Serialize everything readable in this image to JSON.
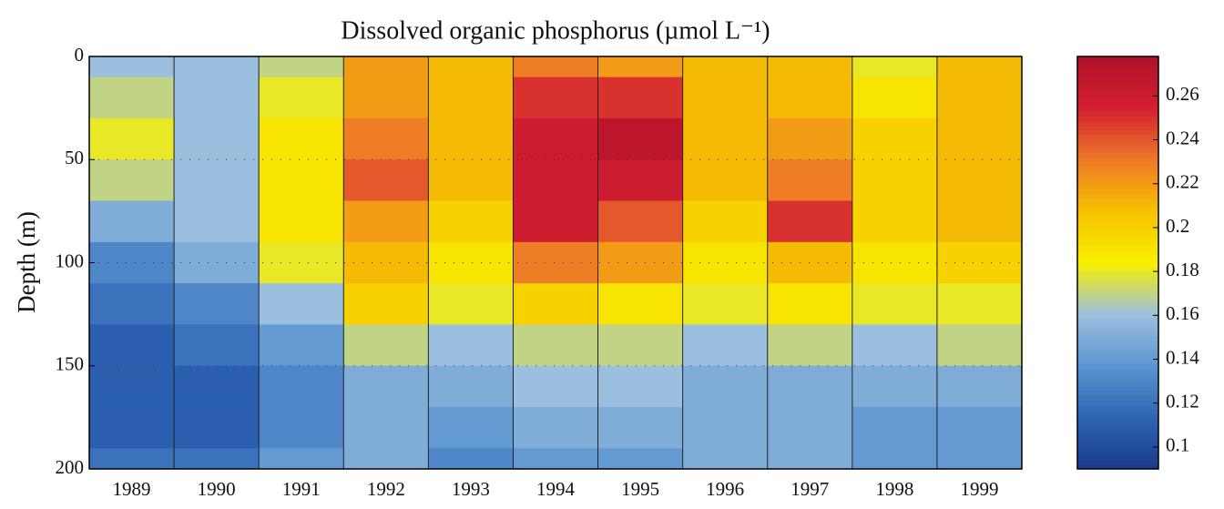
{
  "chart_data": {
    "type": "heatmap",
    "title": "Dissolved organic phosphorus (µmol L⁻¹)",
    "ylabel": "Depth (m)",
    "categories": [
      "1989",
      "1990",
      "1991",
      "1992",
      "1993",
      "1994",
      "1995",
      "1996",
      "1997",
      "1998",
      "1999"
    ],
    "y": [
      0,
      20,
      40,
      60,
      80,
      100,
      120,
      140,
      160,
      180,
      200
    ],
    "ylim": [
      0,
      200
    ],
    "yticks": [
      0,
      50,
      100,
      150,
      200
    ],
    "y_inverted": true,
    "values": [
      [
        0.16,
        0.17,
        0.18,
        0.17,
        0.15,
        0.13,
        0.12,
        0.11,
        0.11,
        0.11,
        0.12
      ],
      [
        0.16,
        0.16,
        0.16,
        0.16,
        0.16,
        0.15,
        0.13,
        0.12,
        0.11,
        0.11,
        0.12
      ],
      [
        0.17,
        0.18,
        0.19,
        0.19,
        0.19,
        0.18,
        0.16,
        0.14,
        0.13,
        0.13,
        0.14
      ],
      [
        0.22,
        0.22,
        0.23,
        0.24,
        0.22,
        0.21,
        0.2,
        0.17,
        0.15,
        0.15,
        0.15
      ],
      [
        0.21,
        0.21,
        0.21,
        0.21,
        0.2,
        0.19,
        0.18,
        0.16,
        0.15,
        0.14,
        0.13
      ],
      [
        0.23,
        0.25,
        0.26,
        0.26,
        0.26,
        0.23,
        0.2,
        0.17,
        0.16,
        0.15,
        0.14
      ],
      [
        0.22,
        0.25,
        0.27,
        0.26,
        0.24,
        0.22,
        0.19,
        0.17,
        0.16,
        0.15,
        0.14
      ],
      [
        0.21,
        0.21,
        0.21,
        0.21,
        0.2,
        0.19,
        0.18,
        0.16,
        0.15,
        0.15,
        0.15
      ],
      [
        0.21,
        0.21,
        0.22,
        0.23,
        0.25,
        0.21,
        0.19,
        0.17,
        0.15,
        0.15,
        0.15
      ],
      [
        0.18,
        0.19,
        0.2,
        0.2,
        0.2,
        0.19,
        0.18,
        0.16,
        0.15,
        0.14,
        0.14
      ],
      [
        0.21,
        0.21,
        0.21,
        0.21,
        0.21,
        0.2,
        0.18,
        0.17,
        0.15,
        0.14,
        0.14
      ]
    ],
    "clim": [
      0.09,
      0.278
    ],
    "cticks": [
      0.1,
      0.12,
      0.14,
      0.16,
      0.18,
      0.2,
      0.22,
      0.24,
      0.26
    ],
    "colors": [
      "#1a3a8c",
      "#2e64b4",
      "#5b95cf",
      "#9cc0df",
      "#f8f000",
      "#f6c200",
      "#ee7a28",
      "#d42030",
      "#b0102a"
    ]
  }
}
